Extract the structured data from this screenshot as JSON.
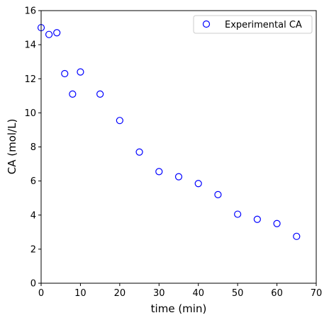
{
  "chart_data": {
    "type": "scatter",
    "xlabel": "time (min)",
    "ylabel": "CA (mol/L)",
    "xlim": [
      0,
      70
    ],
    "ylim": [
      0,
      16
    ],
    "xticks": [
      0,
      10,
      20,
      30,
      40,
      50,
      60,
      70
    ],
    "yticks": [
      0,
      2,
      4,
      6,
      8,
      10,
      12,
      14,
      16
    ],
    "grid": false,
    "legend_position": "top-right",
    "series": [
      {
        "name": "Experimental CA",
        "marker": "open-circle",
        "color": "#0000ff",
        "x": [
          0,
          2,
          4,
          6,
          8,
          10,
          15,
          20,
          25,
          30,
          35,
          40,
          45,
          50,
          55,
          60,
          65
        ],
        "y": [
          15.0,
          14.6,
          14.7,
          12.3,
          11.1,
          12.4,
          11.1,
          9.55,
          7.7,
          6.55,
          6.25,
          5.85,
          5.2,
          4.05,
          3.75,
          3.5,
          2.75
        ]
      }
    ]
  }
}
